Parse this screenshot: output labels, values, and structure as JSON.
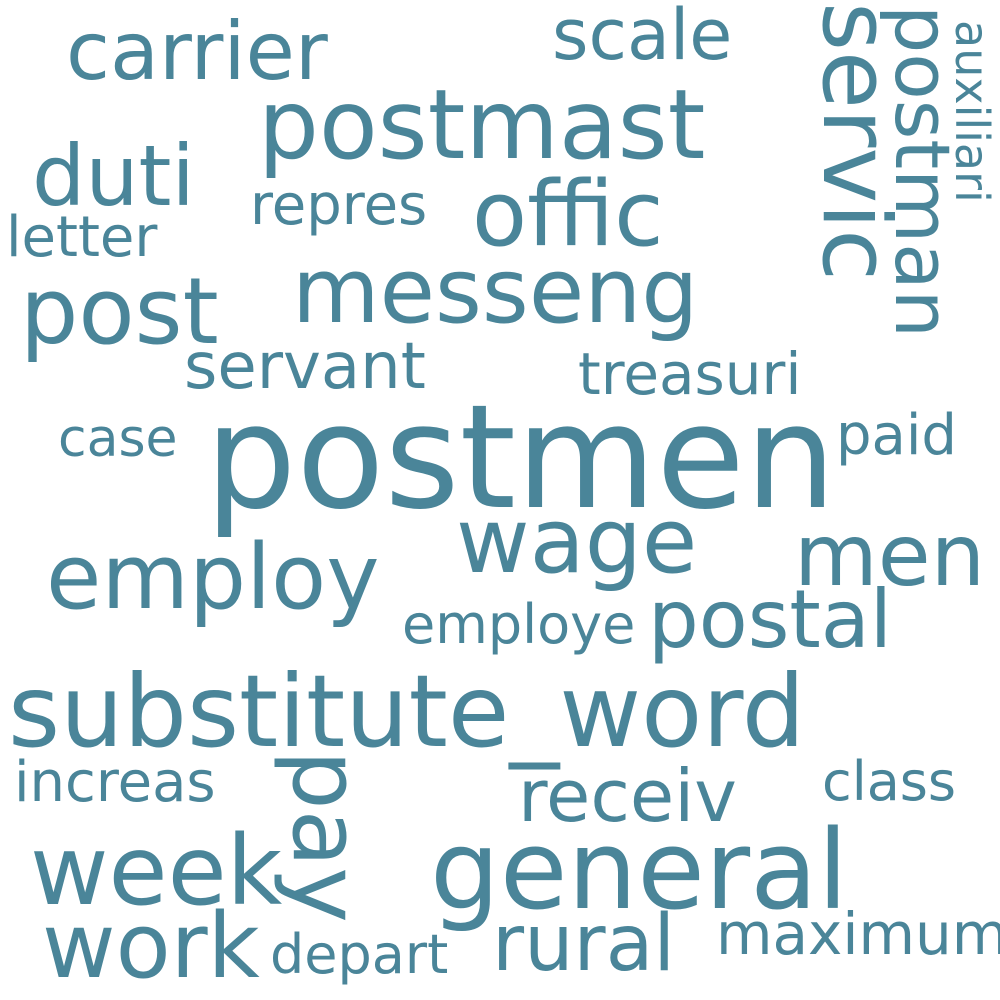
{
  "color": "#4a8599",
  "words": {
    "postmen": "postmen",
    "substitute_word": "substitute_word",
    "postmast": "postmast",
    "employ": "employ",
    "messeng": "messeng",
    "offic": "offic",
    "servic": "servic",
    "postman": "postman",
    "carrier": "carrier",
    "post": "post",
    "wage": "wage",
    "men": "men",
    "general": "general",
    "week": "week",
    "work": "work",
    "pay": "pay",
    "duti": "duti",
    "postal": "postal",
    "rural": "rural",
    "receiv": "receiv",
    "scale": "scale",
    "servant": "servant",
    "treasuri": "treasuri",
    "repres": "repres",
    "maximum": "maximum",
    "letter": "letter",
    "auxiliari": "auxiliari",
    "paid": "paid",
    "case": "case",
    "employe": "employe",
    "increas": "increas",
    "class": "class",
    "depart": "depart"
  }
}
